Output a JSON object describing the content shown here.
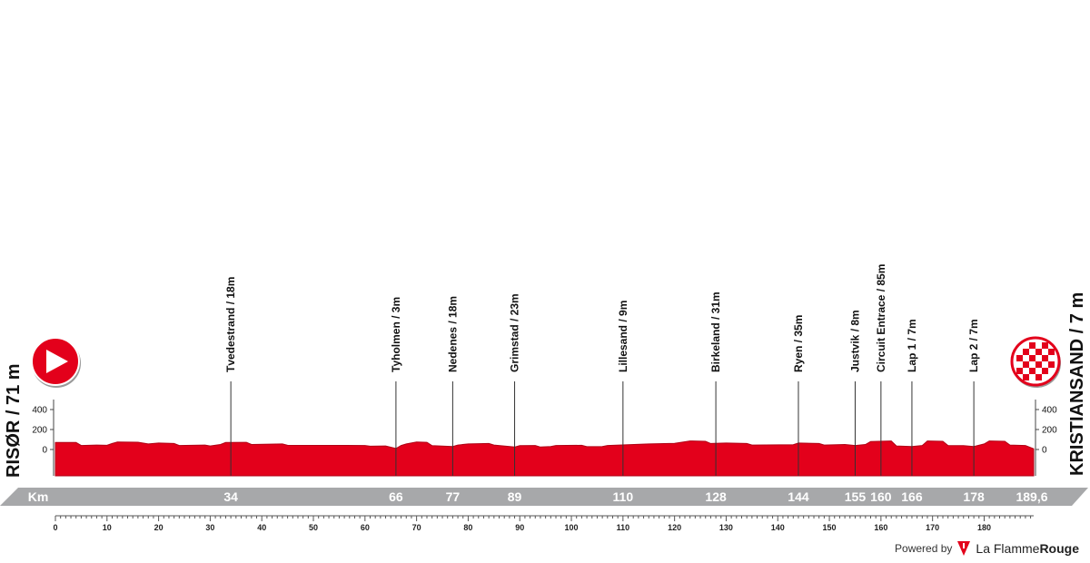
{
  "chart_data": {
    "type": "area",
    "start": {
      "name": "RISØR",
      "altitude": "71 m"
    },
    "finish": {
      "name": "KRISTIANSAND",
      "altitude": "7 m"
    },
    "xlim": [
      0,
      189.6
    ],
    "ylim": [
      -200,
      450
    ],
    "y_ticks": [
      "400",
      "200",
      "0"
    ],
    "x_ticks": [
      0,
      10,
      20,
      30,
      40,
      50,
      60,
      70,
      80,
      90,
      100,
      110,
      120,
      130,
      140,
      150,
      160,
      170,
      180
    ],
    "km_bar_label": "Km",
    "km_bar_values": [
      {
        "km": 34,
        "label": "34"
      },
      {
        "km": 66,
        "label": "66"
      },
      {
        "km": 77,
        "label": "77"
      },
      {
        "km": 89,
        "label": "89"
      },
      {
        "km": 110,
        "label": "110"
      },
      {
        "km": 128,
        "label": "128"
      },
      {
        "km": 144,
        "label": "144"
      },
      {
        "km": 155,
        "label": "155"
      },
      {
        "km": 160,
        "label": "160"
      },
      {
        "km": 166,
        "label": "166"
      },
      {
        "km": 178,
        "label": "178"
      }
    ],
    "total_distance_label": "189,6",
    "waypoints": [
      {
        "km": 34,
        "label": "Tvedestrand / 18m"
      },
      {
        "km": 66,
        "label": "Tyholmen / 3m"
      },
      {
        "km": 77,
        "label": "Nedenes / 18m"
      },
      {
        "km": 89,
        "label": "Grimstad / 23m"
      },
      {
        "km": 110,
        "label": "Lillesand / 9m"
      },
      {
        "km": 128,
        "label": "Birkeland / 31m"
      },
      {
        "km": 144,
        "label": "Ryen / 35m"
      },
      {
        "km": 155,
        "label": "Justvik / 8m"
      },
      {
        "km": 160,
        "label": "Circuit Entrace / 85m"
      },
      {
        "km": 166,
        "label": "Lap 1 / 7m"
      },
      {
        "km": 178,
        "label": "Lap 2 / 7m"
      }
    ],
    "elevation": [
      [
        0,
        71
      ],
      [
        4,
        70
      ],
      [
        5,
        40
      ],
      [
        8,
        45
      ],
      [
        10,
        42
      ],
      [
        11,
        60
      ],
      [
        12,
        75
      ],
      [
        16,
        73
      ],
      [
        18,
        55
      ],
      [
        20,
        65
      ],
      [
        23,
        60
      ],
      [
        24,
        40
      ],
      [
        29,
        45
      ],
      [
        30,
        35
      ],
      [
        32,
        50
      ],
      [
        33,
        70
      ],
      [
        37,
        72
      ],
      [
        38,
        50
      ],
      [
        44,
        55
      ],
      [
        45,
        42
      ],
      [
        60,
        40
      ],
      [
        61,
        33
      ],
      [
        64,
        35
      ],
      [
        66,
        10
      ],
      [
        67,
        40
      ],
      [
        68,
        55
      ],
      [
        70,
        75
      ],
      [
        72,
        72
      ],
      [
        73,
        38
      ],
      [
        77,
        30
      ],
      [
        78,
        45
      ],
      [
        80,
        55
      ],
      [
        84,
        60
      ],
      [
        85,
        45
      ],
      [
        89,
        25
      ],
      [
        90,
        38
      ],
      [
        93,
        40
      ],
      [
        94,
        25
      ],
      [
        96,
        30
      ],
      [
        97,
        40
      ],
      [
        102,
        42
      ],
      [
        103,
        28
      ],
      [
        106,
        30
      ],
      [
        107,
        40
      ],
      [
        115,
        55
      ],
      [
        120,
        62
      ],
      [
        123,
        85
      ],
      [
        126,
        82
      ],
      [
        127,
        60
      ],
      [
        130,
        65
      ],
      [
        134,
        60
      ],
      [
        135,
        45
      ],
      [
        143,
        48
      ],
      [
        144,
        65
      ],
      [
        148,
        60
      ],
      [
        149,
        45
      ],
      [
        153,
        50
      ],
      [
        155,
        40
      ],
      [
        157,
        50
      ],
      [
        158,
        80
      ],
      [
        162,
        85
      ],
      [
        163,
        35
      ],
      [
        166,
        30
      ],
      [
        168,
        40
      ],
      [
        169,
        85
      ],
      [
        172,
        82
      ],
      [
        173,
        40
      ],
      [
        176,
        38
      ],
      [
        178,
        30
      ],
      [
        180,
        55
      ],
      [
        181,
        85
      ],
      [
        184,
        82
      ],
      [
        185,
        45
      ],
      [
        188,
        40
      ],
      [
        189.6,
        7
      ]
    ],
    "colors": {
      "profile": "#e3001b",
      "profile_border": "#b00014",
      "km_bar": "#a7a8aa",
      "start": "#e3001b",
      "finish": "#e3001b"
    }
  },
  "footer": {
    "powered_by": "Powered by",
    "brand_plain": "La Flamme",
    "brand_bold": "Rouge",
    "logo_icon": "flamme-rouge-logo-icon"
  }
}
